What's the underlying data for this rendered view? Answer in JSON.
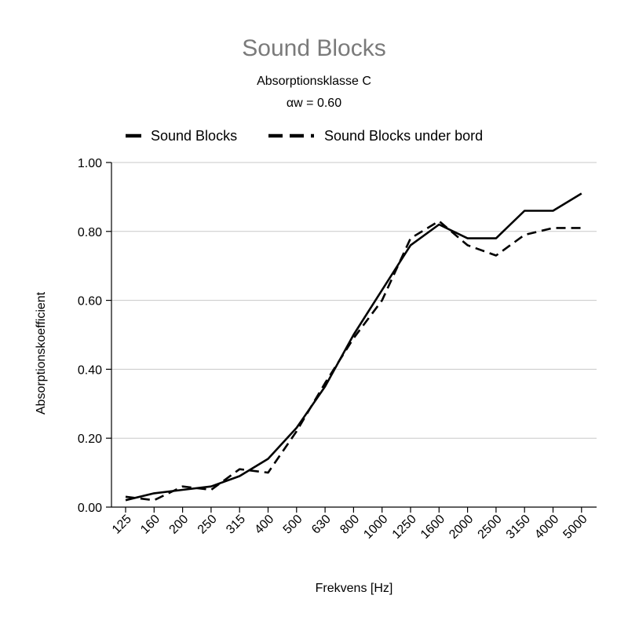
{
  "chart_data": {
    "type": "line",
    "title": "Sound Blocks",
    "subtitle": "Absorptionsklasse C",
    "subtitle2": "αw = 0.60",
    "xlabel": "Frekvens [Hz]",
    "ylabel": "Absorptionskoefficient",
    "categories": [
      "125",
      "160",
      "200",
      "250",
      "315",
      "400",
      "500",
      "630",
      "800",
      "1000",
      "1250",
      "1600",
      "2000",
      "2500",
      "3150",
      "4000",
      "5000"
    ],
    "ylim": [
      0,
      1
    ],
    "yticks": [
      "0.00",
      "0.20",
      "0.40",
      "0.60",
      "0.80",
      "1.00"
    ],
    "grid": true,
    "legend_position": "top",
    "series": [
      {
        "name": "Sound Blocks",
        "style": "solid",
        "color": "#000000",
        "values": [
          0.02,
          0.04,
          0.05,
          0.06,
          0.09,
          0.14,
          0.23,
          0.35,
          0.5,
          0.63,
          0.76,
          0.82,
          0.78,
          0.78,
          0.86,
          0.86,
          0.91
        ]
      },
      {
        "name": "Sound Blocks under bord",
        "style": "dashed",
        "color": "#000000",
        "values": [
          0.03,
          0.02,
          0.06,
          0.05,
          0.11,
          0.1,
          0.22,
          0.36,
          0.49,
          0.6,
          0.78,
          0.83,
          0.76,
          0.73,
          0.79,
          0.81,
          0.81
        ]
      }
    ]
  }
}
